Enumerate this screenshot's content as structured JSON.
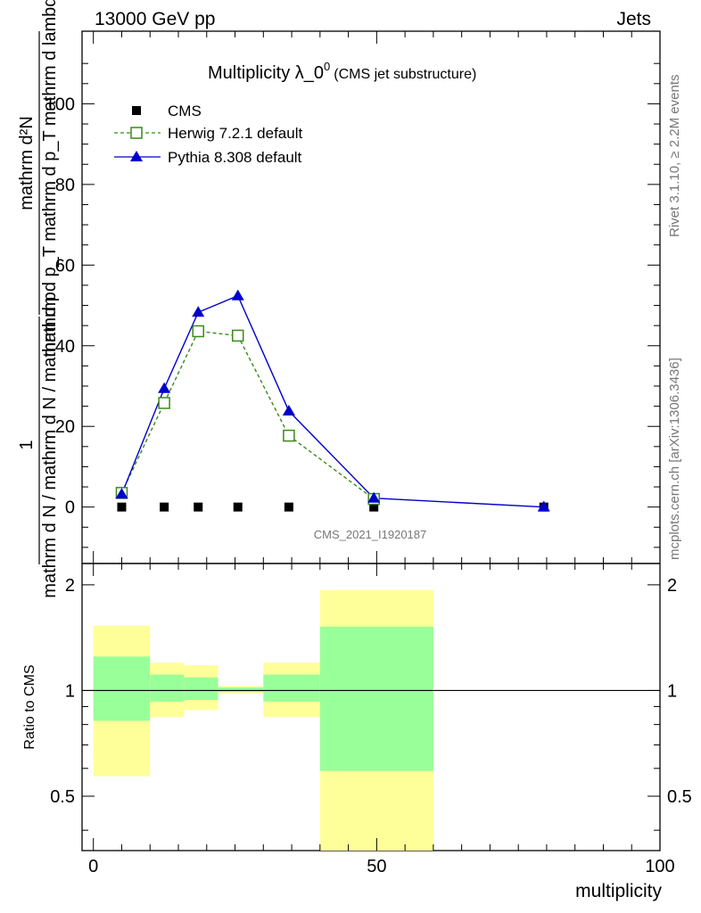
{
  "header": {
    "left_label": "13000 GeV pp",
    "right_label": "Jets"
  },
  "side_labels": {
    "rivet": "Rivet 3.1.10, ≥ 2.2M events",
    "mcplots": "mcplots.cern.ch [arXiv:1306.3436]"
  },
  "watermark": "CMS_2021_I1920187",
  "colors": {
    "cms": "#000000",
    "herwig": "#3a8a1a",
    "pythia": "#0000cc",
    "band_inner": "#99ff99",
    "band_outer": "#ffff99"
  },
  "chart_data": [
    {
      "type": "line",
      "title": {
        "main": "Multiplicity λ_0",
        "sup": "0",
        "paren": "(CMS jet substructure)"
      },
      "ylabel": {
        "numerator": "mathrm d²N",
        "denominator": "mathrm d p_T mathrm d p_T mathrm d lambda",
        "prefix_num": "1",
        "prefix_den": "mathrm d N / mathrm d N / mathrm d p"
      },
      "xlim": [
        -2,
        100
      ],
      "ylim": [
        -14,
        118
      ],
      "y_ticks": [
        0,
        20,
        40,
        60,
        80,
        100
      ],
      "y_tick_labels": [
        "0",
        "20",
        "40",
        "60",
        "80",
        "100"
      ],
      "legend_position": "top-left",
      "series": [
        {
          "name": "CMS",
          "marker": "square",
          "x": [
            5,
            12.5,
            18.5,
            25.5,
            34.5,
            49.5,
            79.5
          ],
          "y": [
            0,
            0,
            0,
            0,
            0,
            0,
            0
          ]
        },
        {
          "name": "Herwig 7.2.1 default",
          "marker": "open-square",
          "line": "dashed",
          "x": [
            5,
            12.5,
            18.5,
            25.5,
            34.5,
            49.5
          ],
          "y": [
            3.5,
            25.8,
            43.6,
            42.5,
            17.7,
            2.0
          ]
        },
        {
          "name": "Pythia 8.308 default",
          "marker": "triangle",
          "line": "solid",
          "x": [
            5,
            12.5,
            18.5,
            25.5,
            34.5,
            49.5,
            79.5
          ],
          "y": [
            3.2,
            29.4,
            48.3,
            52.4,
            23.8,
            2.2,
            0.0
          ]
        }
      ]
    },
    {
      "type": "area",
      "ylabel": "Ratio to CMS",
      "xlabel": "multiplicity",
      "xlim": [
        -2,
        100
      ],
      "ylim": [
        0.35,
        2.3
      ],
      "x_ticks": [
        0,
        50,
        100
      ],
      "x_tick_labels": [
        "0",
        "50",
        "100"
      ],
      "y_ticks": [
        0.5,
        1,
        2
      ],
      "y_tick_labels": [
        "0.5",
        "1",
        "2"
      ],
      "reference_line": 1,
      "bands": [
        {
          "x0": 0,
          "x1": 10,
          "inner": [
            0.82,
            1.25
          ],
          "outer": [
            0.57,
            1.53
          ]
        },
        {
          "x0": 10,
          "x1": 16,
          "inner": [
            0.93,
            1.11
          ],
          "outer": [
            0.84,
            1.2
          ]
        },
        {
          "x0": 16,
          "x1": 22,
          "inner": [
            0.94,
            1.09
          ],
          "outer": [
            0.88,
            1.18
          ]
        },
        {
          "x0": 22,
          "x1": 30,
          "inner": [
            0.99,
            1.02
          ],
          "outer": [
            0.98,
            1.03
          ]
        },
        {
          "x0": 30,
          "x1": 40,
          "inner": [
            0.93,
            1.11
          ],
          "outer": [
            0.84,
            1.2
          ]
        },
        {
          "x0": 40,
          "x1": 60,
          "inner": [
            0.59,
            1.52
          ],
          "outer": [
            0.35,
            1.93
          ]
        }
      ]
    }
  ]
}
